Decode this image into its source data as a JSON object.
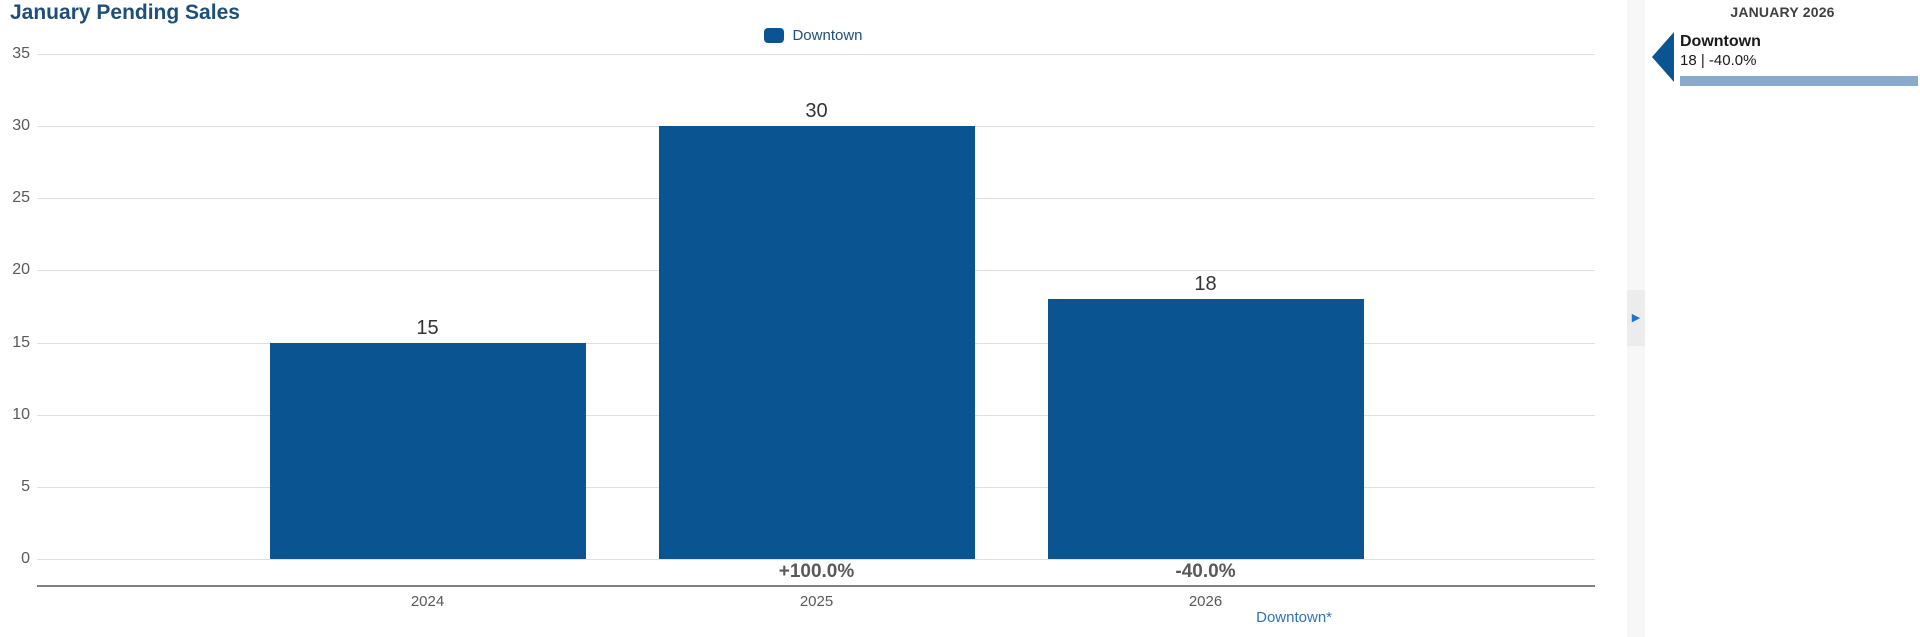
{
  "title": "January Pending Sales",
  "legend": {
    "label": "Downtown",
    "color": "#0a5591"
  },
  "chart_data": {
    "type": "bar",
    "title": "January Pending Sales",
    "categories": [
      "2024",
      "2025",
      "2026"
    ],
    "series": [
      {
        "name": "Downtown",
        "color": "#0a5591",
        "values": [
          15,
          30,
          18
        ]
      }
    ],
    "value_labels": [
      "15",
      "30",
      "18"
    ],
    "pct_change_labels": [
      "",
      "+100.0%",
      "-40.0%"
    ],
    "ylim": [
      0,
      35
    ],
    "yticks": [
      0,
      5,
      10,
      15,
      20,
      25,
      30,
      35
    ],
    "grid": true,
    "legend_position": "top-center",
    "xlabel": "",
    "ylabel": ""
  },
  "footnote_link": "Downtown*",
  "divider": {
    "collapse_arrow": "▶"
  },
  "side_panel": {
    "header": "JANUARY 2026",
    "item": {
      "name": "Downtown",
      "value_line": "18 | -40.0%",
      "marker_color": "#0a5591",
      "bar_color": "#8aaacd"
    }
  },
  "colors": {
    "bar": "#0a5591",
    "title_text": "#1f4e79",
    "axis_text": "#595959",
    "value_text": "#333333",
    "gridline": "#e0e0e0",
    "axis_line": "#808080",
    "link": "#2e75b6",
    "panel_bar": "#8aaacd"
  }
}
